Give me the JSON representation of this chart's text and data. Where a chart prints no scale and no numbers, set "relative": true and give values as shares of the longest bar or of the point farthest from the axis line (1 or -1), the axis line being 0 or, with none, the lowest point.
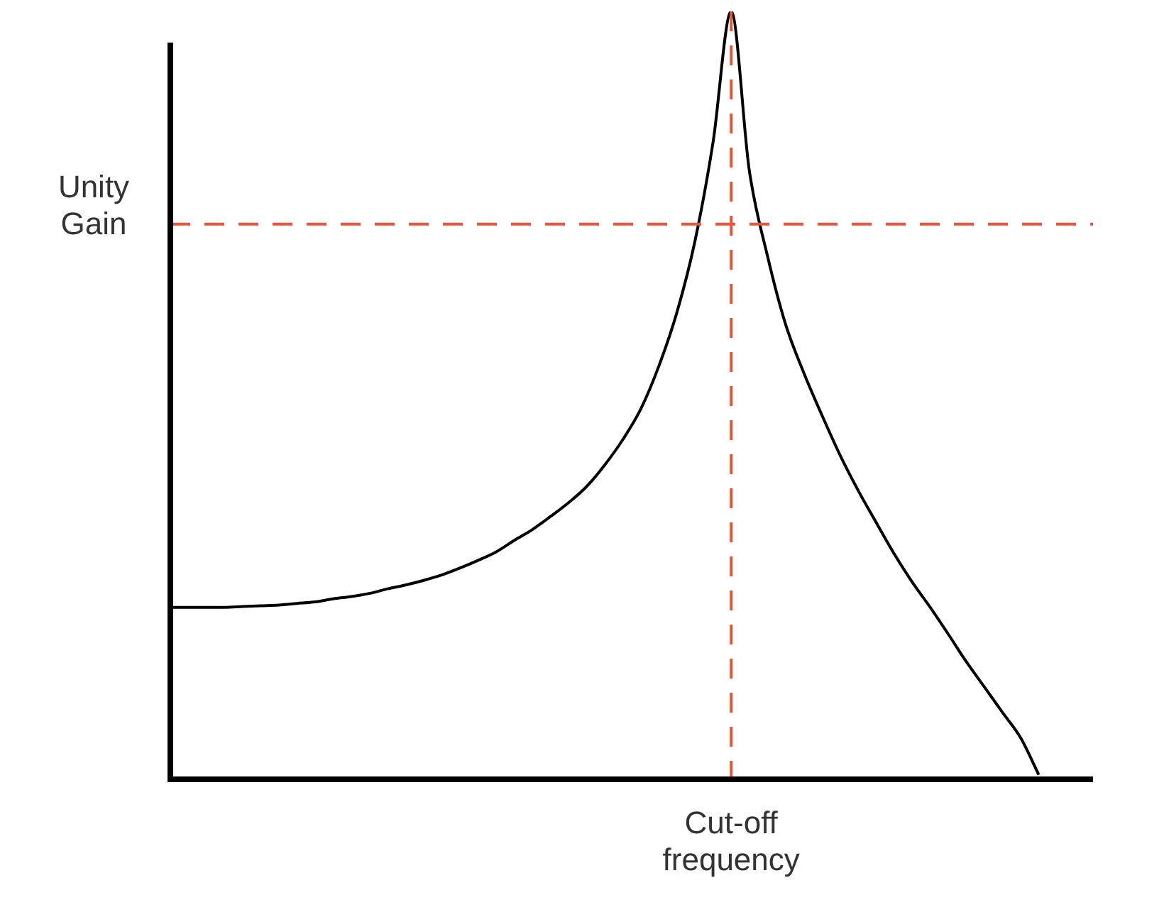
{
  "chart_data": {
    "type": "line",
    "relative": true,
    "grid": false,
    "legend": false,
    "marker": "none",
    "line_style": "solid",
    "categories": [
      null,
      null,
      null,
      null,
      null,
      null,
      null,
      null,
      null,
      null,
      null,
      null,
      null,
      null,
      null,
      null,
      null,
      null,
      null,
      null,
      null,
      null,
      null,
      null,
      null,
      null,
      null,
      null,
      null,
      null,
      null,
      null,
      null,
      null,
      null,
      null,
      null,
      null,
      null,
      null,
      null,
      null,
      null,
      null,
      null,
      null,
      null,
      null,
      null,
      null,
      null,
      null
    ],
    "series": [
      {
        "color": "#000000",
        "values": [
          0.224,
          0.224,
          0.224,
          0.224,
          0.225,
          0.226,
          0.227,
          0.229,
          0.231,
          0.235,
          0.238,
          0.242,
          0.248,
          0.253,
          0.259,
          0.266,
          0.275,
          0.285,
          0.296,
          0.311,
          0.325,
          0.342,
          0.36,
          0.381,
          0.409,
          0.442,
          0.482,
          0.538,
          0.608,
          0.701,
          0.83,
          1,
          0.793,
          0.682,
          0.593,
          0.53,
          0.475,
          0.423,
          0.377,
          0.335,
          0.294,
          0.257,
          0.224,
          0.189,
          0.153,
          0.12,
          0.087,
          0.054,
          0.006,
          null,
          null,
          null
        ]
      }
    ],
    "ref_lines": [
      {
        "axis": "y",
        "value": 0.723,
        "label": "Unity Gain",
        "color": "#e8553a",
        "line_style": "dashed"
      },
      {
        "axis": "x",
        "label": "Cut-off frequency",
        "color": "#e8553a",
        "line_style": "dashed"
      }
    ]
  }
}
